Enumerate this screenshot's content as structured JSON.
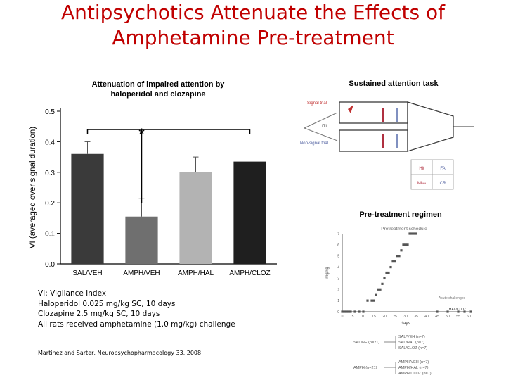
{
  "slide": {
    "title_line1": "Antipsychotics Attenuate the Effects of",
    "title_line2": "Amphetamine Pre-treatment",
    "left_panel_title_line1": "Attenuation of impaired attention by",
    "left_panel_title_line2": "haloperidol and clozapine",
    "right_top_title": "Sustained attention task",
    "right_bottom_title": "Pre-treatment regimen",
    "notes": [
      "VI: Vigilance Index",
      "Haloperidol 0.025 mg/kg SC, 10 days",
      "Clozapine 2.5 mg/kg SC, 10 days",
      "All rats received amphetamine (1.0 mg/kg) challenge"
    ],
    "citation": "Martinez and Sarter, Neuropsychopharmacology 33, 2008"
  },
  "chart_data": [
    {
      "type": "bar",
      "categories": [
        "SAL/VEH",
        "AMPH/VEH",
        "AMPH/HAL",
        "AMPH/CLOZ"
      ],
      "values": [
        0.36,
        0.155,
        0.3,
        0.335
      ],
      "errors": [
        0.04,
        0.06,
        0.05,
        0.0
      ],
      "colors": [
        "#3a3a3a",
        "#6f6f6f",
        "#b3b3b3",
        "#1f1f1f"
      ],
      "ylabel": "VI (averaged over signal duration)",
      "ylim": [
        0,
        0.5
      ],
      "yticks": [
        "0.0",
        "0.1",
        "0.2",
        "0.3",
        "0.4",
        "0.5"
      ],
      "significance": "*"
    },
    {
      "type": "scatter",
      "xlabel": "days",
      "ylabel": "mg/kg",
      "title": "Pretreatment schedule",
      "xticks": [
        "0",
        "5",
        "10",
        "15",
        "20",
        "25",
        "30",
        "35",
        "40",
        "45",
        "50",
        "55",
        "60"
      ],
      "yticks": [
        "0",
        "1",
        "2",
        "3",
        "4",
        "5",
        "6",
        "7"
      ],
      "x": [
        0,
        1,
        2,
        3,
        4,
        6,
        8,
        10,
        12,
        14,
        15,
        16,
        17,
        18,
        19,
        20,
        21,
        22,
        23,
        24,
        25,
        26,
        27,
        28,
        29,
        30,
        31,
        32,
        33,
        34,
        35,
        45,
        50,
        55,
        58,
        61
      ],
      "y": [
        0,
        0,
        0,
        0,
        0,
        0,
        0,
        0,
        1,
        1,
        1,
        1.5,
        2,
        2,
        2.5,
        3,
        3.5,
        3.5,
        4,
        4.5,
        4.5,
        5,
        5,
        5.5,
        6,
        6,
        6,
        7,
        7,
        7,
        7,
        0,
        0,
        0,
        0,
        0
      ],
      "annotations": [
        "Acute challenges",
        "HAL/CLOZ"
      ],
      "legend": [
        "SAL/VEH (n=7)",
        "SAL/HAL (n=7)",
        "SAL/CLOZ (n=7)",
        "AMPH (n=21)",
        "AMPH/VEH (n=7)",
        "AMPH/HAL (n=7)",
        "AMPH/CLOZ (n=7)"
      ],
      "group_labels": [
        "SALINE (n=21)"
      ]
    }
  ],
  "diagram": {
    "labels": [
      "Signal trial",
      "Non-signal trial",
      "ITI",
      "Hit",
      "Miss",
      "CR",
      "FA"
    ]
  }
}
